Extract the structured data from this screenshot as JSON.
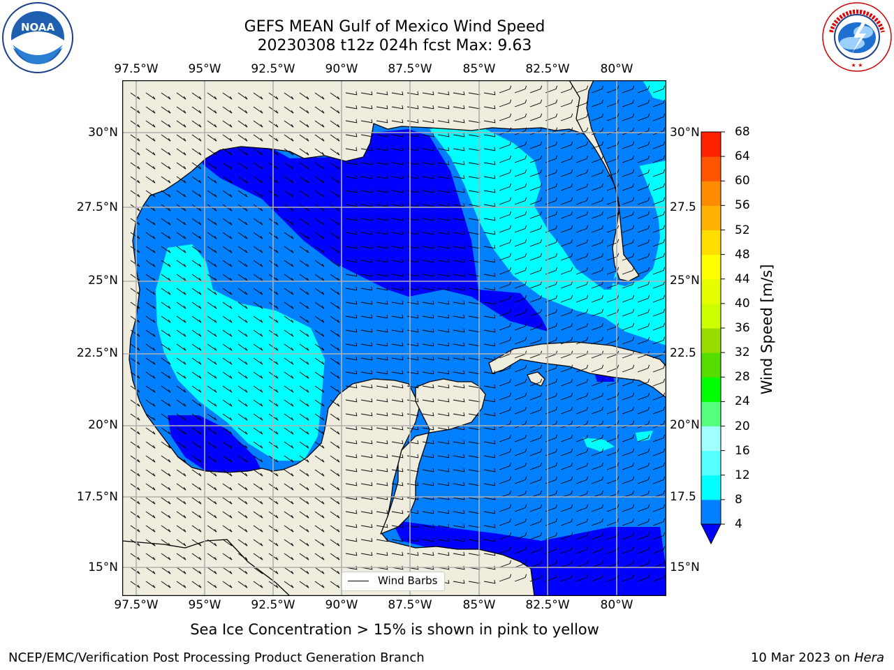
{
  "header": {
    "title_line1": "GEFS MEAN Gulf of Mexico Wind Speed",
    "title_line2": "20230308 t12z 024h fcst   Max: 9.63"
  },
  "logos": {
    "left": {
      "name": "noaa-logo",
      "text": "NOAA",
      "ring_text": "NATIONAL OCEANIC AND ATMOSPHERIC ADMINISTRATION · U.S. DEPARTMENT OF COMMERCE"
    },
    "right": {
      "name": "nws-logo",
      "ring_text": "NATIONAL WEATHER SERVICE"
    }
  },
  "map": {
    "lon_ticks_top": [
      "97.5°W",
      "95°W",
      "92.5°W",
      "90°W",
      "87.5°W",
      "85°W",
      "82.5°W",
      "80°W"
    ],
    "lon_ticks_bottom": [
      "97.5°W",
      "95°W",
      "92.5°W",
      "90°W",
      "87.5°W",
      "85°W",
      "82.5°W",
      "80°W"
    ],
    "lat_ticks_left": [
      "30°N",
      "27.5°N",
      "25°N",
      "22.5°N",
      "20°N",
      "17.5°N",
      "15°N"
    ],
    "lat_ticks_right": [
      "30°N",
      "27.5",
      "25°N",
      "22.5",
      "20°N",
      "17.5",
      "15°N"
    ],
    "legend_label": "Wind Barbs",
    "colors": {
      "land": "#efedde",
      "band_4_8": "#0080ff",
      "band_0_4": "#0000ff",
      "band_8_12": "#00ffff",
      "grid": "#b0b0b0"
    }
  },
  "colorbar": {
    "label": "Wind Speed [m/s]",
    "ticks": [
      "4",
      "8",
      "12",
      "16",
      "20",
      "24",
      "28",
      "32",
      "36",
      "40",
      "44",
      "48",
      "52",
      "56",
      "60",
      "64",
      "68"
    ],
    "colors": [
      "#0080ff",
      "#00ffff",
      "#55ffff",
      "#a0ffff",
      "#55ff80",
      "#00ff00",
      "#55dd00",
      "#99dd00",
      "#ccff00",
      "#e6ff00",
      "#ffff00",
      "#ffdd00",
      "#ffb300",
      "#ff8c00",
      "#ff5500",
      "#ff2200"
    ],
    "under_color": "#0000ff"
  },
  "footer": {
    "note": "Sea Ice Concentration > 15% is shown in pink to yellow",
    "credit_left": "NCEP/EMC/Verification Post Processing Product Generation Branch",
    "credit_date": "10 Mar 2023 on",
    "credit_host": "Hera"
  }
}
